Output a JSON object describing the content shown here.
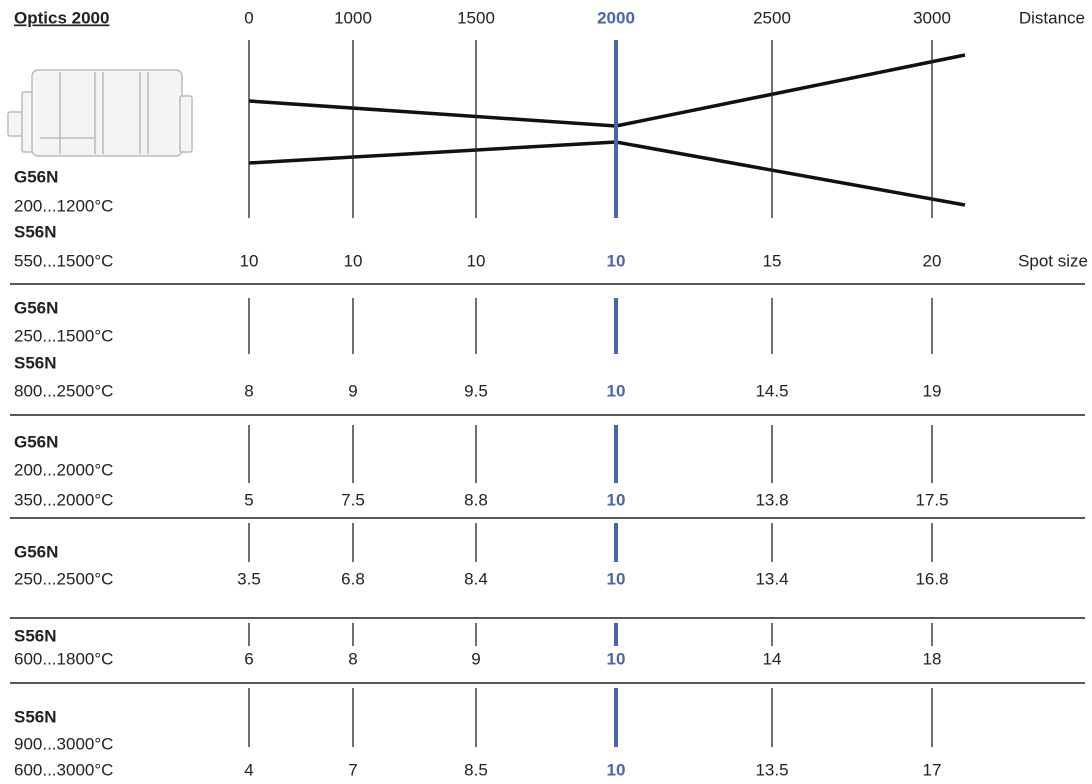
{
  "header": {
    "title": "Optics 2000",
    "distance_label": "Distance",
    "spot_size_label": "Spot size",
    "distances": [
      0,
      1000,
      1500,
      2000,
      2500,
      3000
    ],
    "highlighted_column": 3,
    "highlight_color": "#4a64b0"
  },
  "rows": [
    {
      "labels": [
        {
          "text": "G56N",
          "bold": true
        },
        {
          "text": "200...1200°C",
          "bold": false
        },
        {
          "text": "S56N",
          "bold": true
        },
        {
          "text": "550...1500°C",
          "bold": false
        }
      ],
      "spot_sizes": [
        10,
        10,
        10,
        10,
        15,
        20
      ]
    },
    {
      "labels": [
        {
          "text": "G56N",
          "bold": true
        },
        {
          "text": "250...1500°C",
          "bold": false
        },
        {
          "text": "S56N",
          "bold": true
        },
        {
          "text": "800...2500°C",
          "bold": false
        }
      ],
      "spot_sizes": [
        8,
        9,
        9.5,
        10,
        14.5,
        19
      ]
    },
    {
      "labels": [
        {
          "text": "G56N",
          "bold": true
        },
        {
          "text": "200...2000°C",
          "bold": false
        },
        {
          "text": "350...2000°C",
          "bold": false
        }
      ],
      "spot_sizes": [
        5,
        7.5,
        8.8,
        10,
        13.8,
        17.5
      ]
    },
    {
      "labels": [
        {
          "text": "G56N",
          "bold": true
        },
        {
          "text": "250...2500°C",
          "bold": false
        }
      ],
      "spot_sizes": [
        3.5,
        6.8,
        8.4,
        10,
        13.4,
        16.8
      ]
    },
    {
      "labels": [
        {
          "text": "S56N",
          "bold": true
        },
        {
          "text": "600...1800°C",
          "bold": false
        }
      ],
      "spot_sizes": [
        6,
        8,
        9,
        10,
        14,
        18
      ]
    },
    {
      "labels": [
        {
          "text": "S56N",
          "bold": true
        },
        {
          "text": "900...3000°C",
          "bold": false
        },
        {
          "text": "600...3000°C",
          "bold": false
        }
      ],
      "spot_sizes": [
        4,
        7,
        8.5,
        10,
        13.5,
        17
      ]
    }
  ]
}
